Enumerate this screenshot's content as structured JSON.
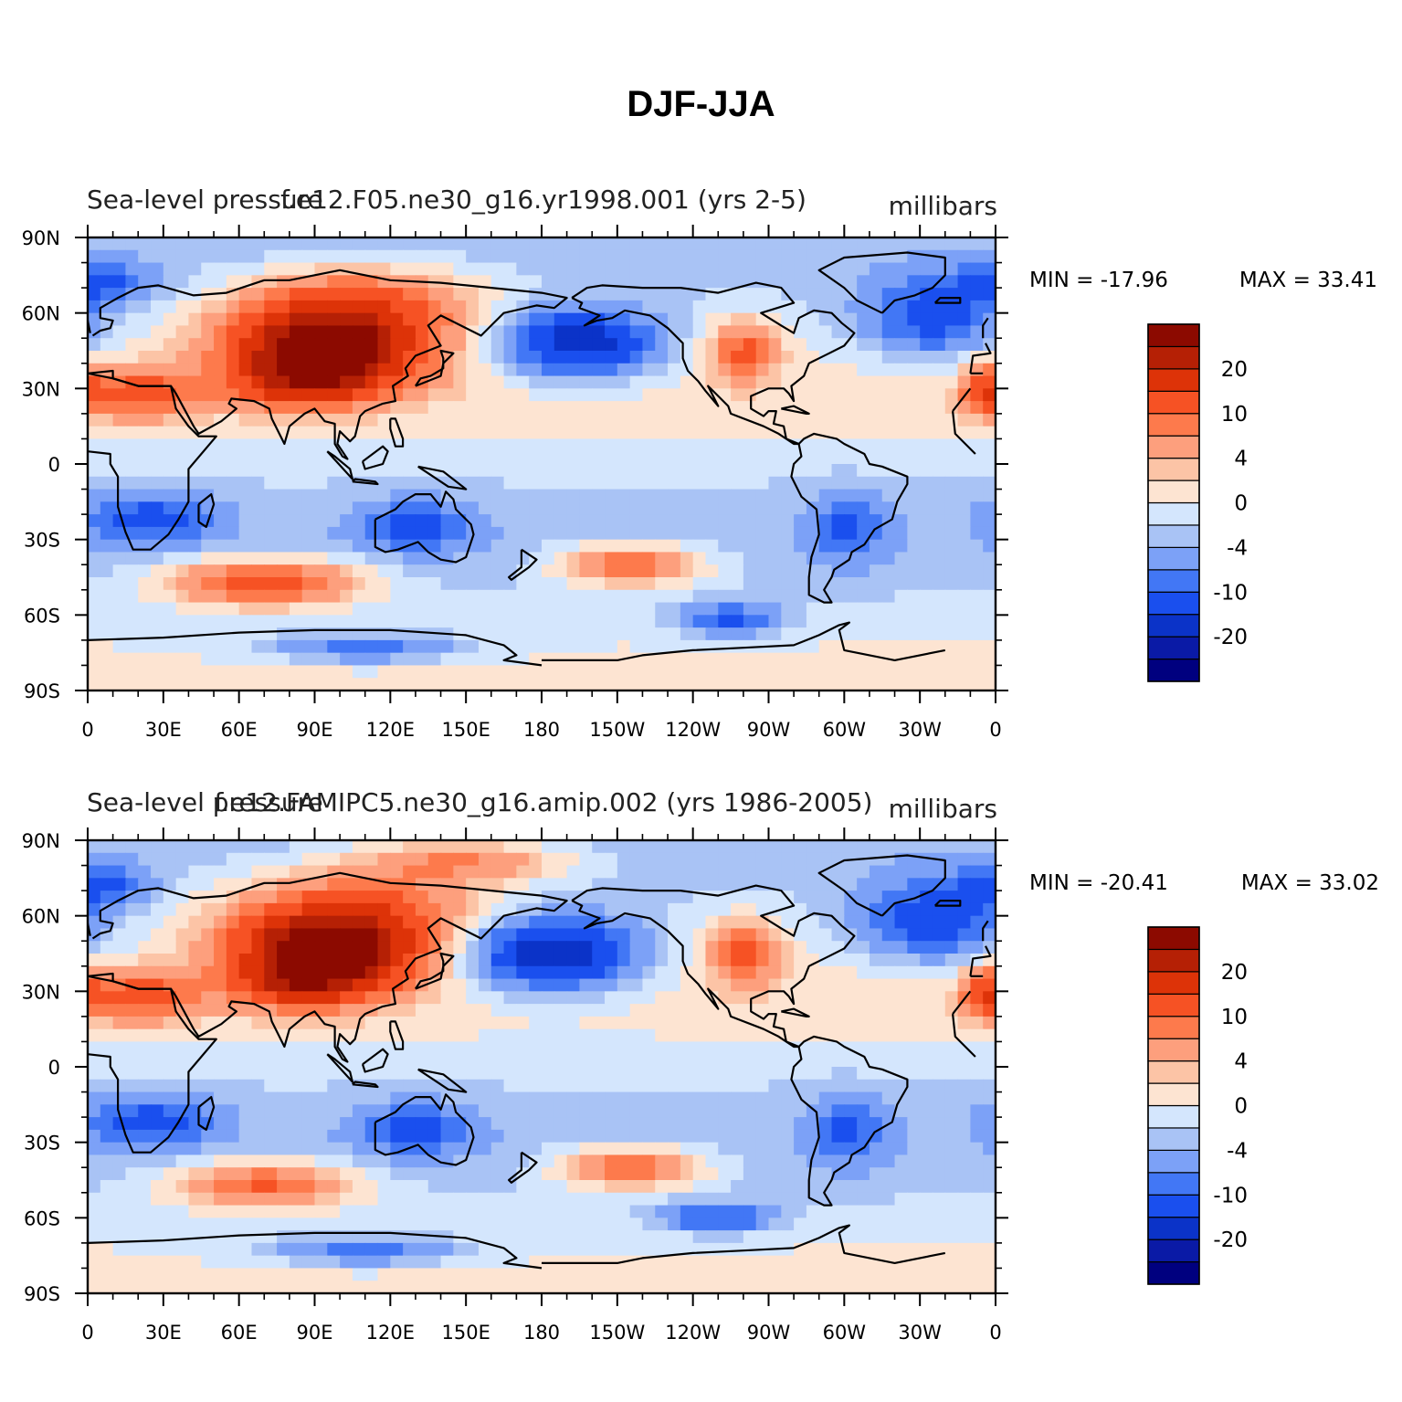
{
  "figure_title": "DJF-JJA",
  "colors": {
    "levels": [
      "#00007f",
      "#0a1aa6",
      "#0b33c8",
      "#1a4fee",
      "#4277f5",
      "#7ca1f7",
      "#a9c3f5",
      "#d4e6fd",
      "#fde4d2",
      "#fcc4a6",
      "#fd9f7d",
      "#fd7a4c",
      "#f65224",
      "#dd3308",
      "#b52005",
      "#8c0a00"
    ],
    "coast": "#000000"
  },
  "chart_data": [
    {
      "type": "contour-map",
      "field": "Sea-level pressure",
      "case": "f.e12.F05.ne30_g16.yr1998.001 (yrs 2-5)",
      "title_left": "Sea-level pressure",
      "title_center": "f.e12.F05.ne30_g16.yr1998.001 (yrs 2-5)",
      "units": "millibars",
      "min_label": "MIN = -17.96",
      "max_label": "MAX =   33.41",
      "min": -17.96,
      "max": 33.41,
      "lat_ticks": [
        "90N",
        "60N",
        "30N",
        "0",
        "30S",
        "60S",
        "90S"
      ],
      "lon_ticks": [
        "0",
        "30E",
        "60E",
        "90E",
        "120E",
        "150E",
        "180",
        "150W",
        "120W",
        "90W",
        "60W",
        "30W",
        "0"
      ],
      "colorbar_labels": [
        "20",
        "10",
        "4",
        "0",
        "-4",
        "-10",
        "-20"
      ],
      "features": [
        {
          "name": "asian-high",
          "lon": 95,
          "lat": 46,
          "value": 30,
          "rlon": 38,
          "rlat": 17
        },
        {
          "name": "tibet",
          "lon": 85,
          "lat": 32,
          "value": 12,
          "rlon": 25,
          "rlat": 10
        },
        {
          "name": "north-africa-high",
          "lon": 20,
          "lat": 28,
          "value": 12,
          "rlon": 25,
          "rlat": 10
        },
        {
          "name": "siberia",
          "lon": 110,
          "lat": 65,
          "value": 10,
          "rlon": 45,
          "rlat": 14
        },
        {
          "name": "north-america-high",
          "lon": -100,
          "lat": 45,
          "value": 11,
          "rlon": 13,
          "rlat": 12
        },
        {
          "name": "azores",
          "lon": -5,
          "lat": 30,
          "value": 11,
          "rlon": 8,
          "rlat": 10
        },
        {
          "name": "aleutian-low",
          "lon": -165,
          "lat": 48,
          "value": -18,
          "rlon": 30,
          "rlat": 13
        },
        {
          "name": "icelandic-low",
          "lon": -25,
          "lat": 58,
          "value": -11,
          "rlon": 28,
          "rlat": 16
        },
        {
          "name": "arctic-europe",
          "lon": 5,
          "lat": 72,
          "value": -8,
          "rlon": 20,
          "rlat": 8
        },
        {
          "name": "south-africa-low",
          "lon": 25,
          "lat": -22,
          "value": -9,
          "rlon": 25,
          "rlat": 10
        },
        {
          "name": "australia-low",
          "lon": 130,
          "lat": -25,
          "value": -9,
          "rlon": 22,
          "rlat": 10
        },
        {
          "name": "south-america-low",
          "lon": -58,
          "lat": -25,
          "value": -8,
          "rlon": 15,
          "rlat": 14
        },
        {
          "name": "south-indian-high",
          "lon": 70,
          "lat": -47,
          "value": 15,
          "rlon": 38,
          "rlat": 9
        },
        {
          "name": "south-pacific-high",
          "lon": -145,
          "lat": -40,
          "value": 12,
          "rlon": 28,
          "rlat": 8
        },
        {
          "name": "amundsen-low",
          "lon": -105,
          "lat": -62,
          "value": -10,
          "rlon": 20,
          "rlat": 6
        },
        {
          "name": "antarctic-low",
          "lon": 110,
          "lat": -73,
          "value": -8,
          "rlon": 40,
          "rlat": 6
        }
      ]
    },
    {
      "type": "contour-map",
      "field": "Sea-level pressure",
      "case": "f.e12.FAMIPC5.ne30_g16.amip.002 (yrs 1986-2005)",
      "title_left": "Sea-level pressure",
      "title_center": "f.e12.FAMIPC5.ne30_g16.amip.002 (yrs 1986-2005)",
      "units": "millibars",
      "min_label": "MIN = -20.41",
      "max_label": "MAX =   33.02",
      "min": -20.41,
      "max": 33.02,
      "lat_ticks": [
        "90N",
        "60N",
        "30N",
        "0",
        "30S",
        "60S",
        "90S"
      ],
      "lon_ticks": [
        "0",
        "30E",
        "60E",
        "90E",
        "120E",
        "150E",
        "180",
        "150W",
        "120W",
        "90W",
        "60W",
        "30W",
        "0"
      ],
      "colorbar_labels": [
        "20",
        "10",
        "4",
        "0",
        "-4",
        "-10",
        "-20"
      ],
      "features": [
        {
          "name": "asian-high",
          "lon": 95,
          "lat": 46,
          "value": 30,
          "rlon": 36,
          "rlat": 16
        },
        {
          "name": "tibet",
          "lon": 85,
          "lat": 32,
          "value": 12,
          "rlon": 25,
          "rlat": 10
        },
        {
          "name": "north-africa-high",
          "lon": 20,
          "lat": 28,
          "value": 12,
          "rlon": 25,
          "rlat": 10
        },
        {
          "name": "siberia",
          "lon": 110,
          "lat": 65,
          "value": 10,
          "rlon": 50,
          "rlat": 16
        },
        {
          "name": "arctic-high",
          "lon": 150,
          "lat": 82,
          "value": 9,
          "rlon": 40,
          "rlat": 8
        },
        {
          "name": "north-america-high",
          "lon": -100,
          "lat": 45,
          "value": 11,
          "rlon": 14,
          "rlat": 13
        },
        {
          "name": "azores",
          "lon": -5,
          "lat": 30,
          "value": 12,
          "rlon": 8,
          "rlat": 10
        },
        {
          "name": "aleutian-low",
          "lon": -175,
          "lat": 45,
          "value": -20,
          "rlon": 32,
          "rlat": 14
        },
        {
          "name": "icelandic-low",
          "lon": -25,
          "lat": 58,
          "value": -12,
          "rlon": 28,
          "rlat": 16
        },
        {
          "name": "arctic-europe",
          "lon": 5,
          "lat": 72,
          "value": -8,
          "rlon": 20,
          "rlat": 8
        },
        {
          "name": "south-africa-low",
          "lon": 25,
          "lat": -22,
          "value": -9,
          "rlon": 25,
          "rlat": 10
        },
        {
          "name": "australia-low",
          "lon": 130,
          "lat": -25,
          "value": -9,
          "rlon": 22,
          "rlat": 10
        },
        {
          "name": "south-america-low",
          "lon": -58,
          "lat": -25,
          "value": -8,
          "rlon": 15,
          "rlat": 14
        },
        {
          "name": "south-indian-high",
          "lon": 70,
          "lat": -47,
          "value": 13,
          "rlon": 35,
          "rlat": 9
        },
        {
          "name": "south-pacific-high",
          "lon": -145,
          "lat": -40,
          "value": 12,
          "rlon": 28,
          "rlat": 8
        },
        {
          "name": "amundsen-low",
          "lon": -110,
          "lat": -60,
          "value": -10,
          "rlon": 22,
          "rlat": 6
        },
        {
          "name": "antarctic-low",
          "lon": 110,
          "lat": -73,
          "value": -8,
          "rlon": 40,
          "rlat": 6
        }
      ]
    }
  ]
}
